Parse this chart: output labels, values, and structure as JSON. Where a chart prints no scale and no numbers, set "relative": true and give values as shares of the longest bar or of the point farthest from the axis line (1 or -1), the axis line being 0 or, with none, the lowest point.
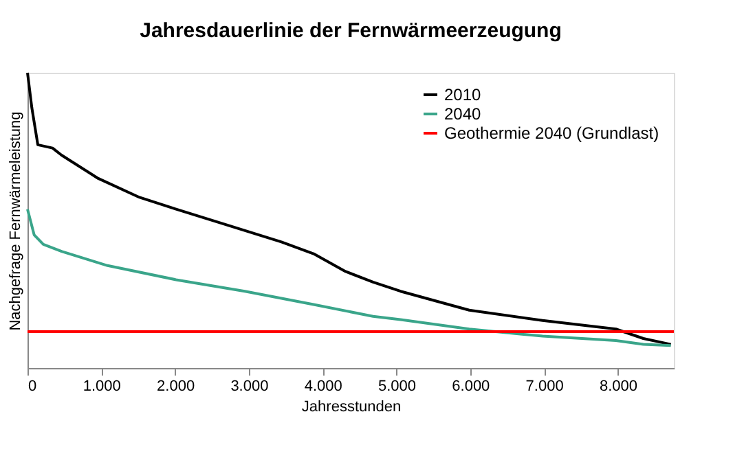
{
  "chart_data": {
    "type": "line",
    "title": "Jahresdauerlinie der Fernwärmeerzeugung",
    "xlabel": "Jahresstunden",
    "ylabel": "Nachgefrage  Fernwärmeleistung",
    "relative": true,
    "tick_labels": "x",
    "grid": false,
    "legend": "top right",
    "marker": "none",
    "line_style": "solid",
    "xlim": [
      0,
      8760
    ],
    "xticks": [
      0,
      {
        "value": 1000,
        "label": "1.000"
      },
      {
        "value": 2000,
        "label": "2.000"
      },
      {
        "value": 3000,
        "label": "3.000"
      },
      {
        "value": 4000,
        "label": "4.000"
      },
      {
        "value": 5000,
        "label": "5.000"
      },
      {
        "value": 6000,
        "label": "6.000"
      },
      {
        "value": 7000,
        "label": "7.000"
      },
      {
        "value": 8000,
        "label": "8.000"
      }
    ],
    "series": [
      {
        "name": "2010",
        "color": "#000000",
        "x": [
          0,
          59,
          140,
          339,
          462,
          959,
          1518,
          2014,
          2635,
          3441,
          3877,
          4311,
          4683,
          5056,
          5987,
          6980,
          7974,
          8346,
          8719
        ],
        "values": [
          1.0,
          0.881,
          0.756,
          0.745,
          0.721,
          0.642,
          0.578,
          0.538,
          0.49,
          0.427,
          0.387,
          0.327,
          0.291,
          0.26,
          0.196,
          0.161,
          0.132,
          0.1,
          0.08
        ]
      },
      {
        "name": "2040",
        "color": "#3aa58a",
        "x": [
          0,
          90,
          214,
          462,
          1084,
          2014,
          2946,
          3877,
          4683,
          5056,
          5987,
          6980,
          7974,
          8346,
          8719
        ],
        "values": [
          0.538,
          0.451,
          0.419,
          0.395,
          0.347,
          0.299,
          0.26,
          0.215,
          0.175,
          0.164,
          0.132,
          0.108,
          0.093,
          0.08,
          0.076
        ]
      },
      {
        "name": "Geothermie 2040 (Grundlast)",
        "color": "#ff0000",
        "x": [
          0,
          8760
        ],
        "values": [
          0.123,
          0.123
        ]
      }
    ]
  }
}
